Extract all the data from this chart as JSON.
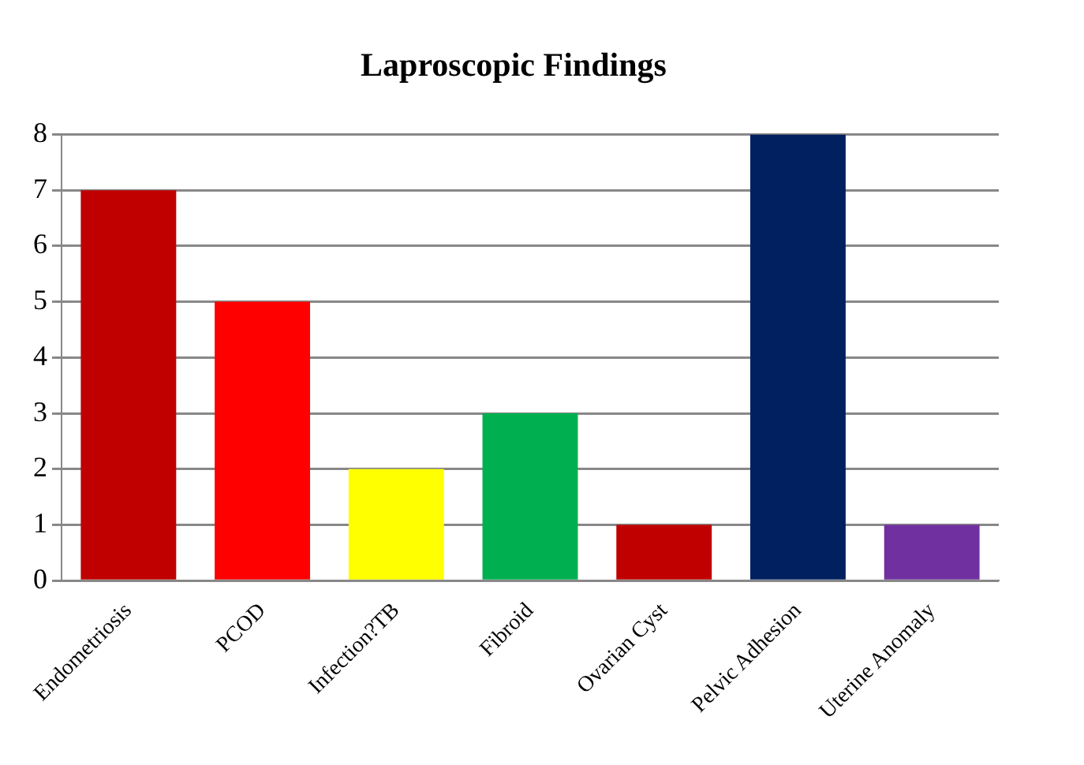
{
  "chart_data": {
    "type": "bar",
    "title": "Laproscopic Findings",
    "categories": [
      "Endometriosis",
      "PCOD",
      "Infection?TB",
      "Fibroid",
      "Ovarian Cyst",
      "Pelvic Adhesion",
      "Uterine Anomaly"
    ],
    "values": [
      7,
      5,
      2,
      3,
      1,
      8,
      1
    ],
    "colors": [
      "#c00000",
      "#ff0000",
      "#ffff00",
      "#00b050",
      "#c00000",
      "#002060",
      "#7030a0"
    ],
    "ylim": [
      0,
      8
    ],
    "yticks": [
      0,
      1,
      2,
      3,
      4,
      5,
      6,
      7,
      8
    ],
    "grid": "y",
    "legend": false
  }
}
